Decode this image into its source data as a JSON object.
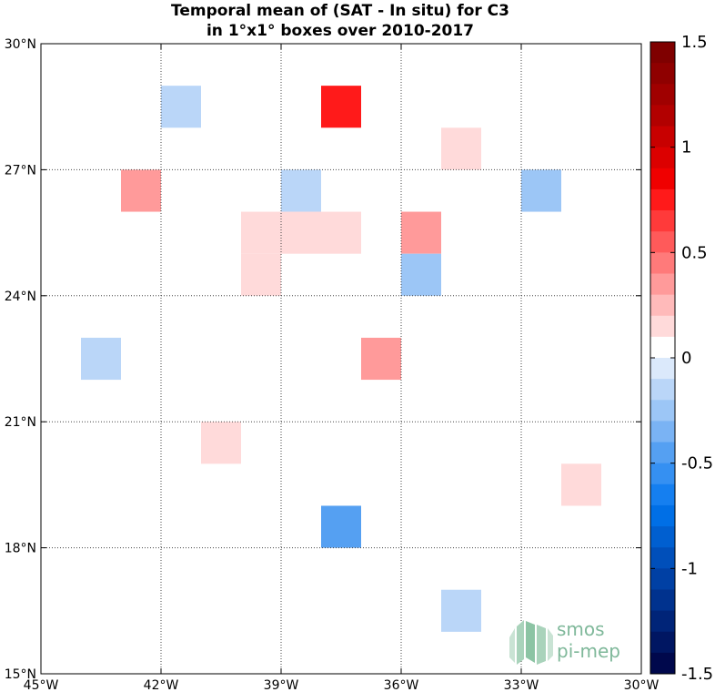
{
  "chart_data": {
    "type": "heatmap",
    "title_lines": [
      "Temporal mean of (SAT - In situ) for C3",
      "in 1°x1° boxes over 2010-2017"
    ],
    "xlim": [
      -45,
      -30
    ],
    "ylim": [
      15,
      30
    ],
    "x_ticks": [
      -45,
      -42,
      -39,
      -36,
      -33,
      -30
    ],
    "x_tick_labels": [
      "45°W",
      "42°W",
      "39°W",
      "36°W",
      "33°W",
      "30°W"
    ],
    "y_ticks": [
      15,
      18,
      21,
      24,
      27,
      30
    ],
    "y_tick_labels": [
      "15°N",
      "18°N",
      "21°N",
      "24°N",
      "27°N",
      "30°N"
    ],
    "grid": true,
    "colorbar": {
      "range": [
        -1.5,
        1.5
      ],
      "ticks": [
        -1.5,
        -1,
        -0.5,
        0,
        0.5,
        1,
        1.5
      ],
      "tick_labels": [
        "-1.5",
        "-1",
        "-0.5",
        "0",
        "0.5",
        "1",
        "1.5"
      ],
      "colors_top_to_bottom": [
        "#7f0000",
        "#8f0000",
        "#a00000",
        "#b20000",
        "#c80000",
        "#dc0000",
        "#f00000",
        "#ff1a1a",
        "#ff3a3a",
        "#ff5a5a",
        "#ff7a7a",
        "#ff9a9a",
        "#ffbaba",
        "#ffdada",
        "#ffffff",
        "#dbe9fb",
        "#bad6f8",
        "#9cc6f6",
        "#7ab3f4",
        "#55a0f2",
        "#3590f2",
        "#157ff0",
        "#006fe6",
        "#005fd0",
        "#004fba",
        "#0040a4",
        "#00328e",
        "#002478",
        "#001662",
        "#00084c"
      ]
    },
    "cells": [
      {
        "lon": -42,
        "lat": 28,
        "value": -0.15
      },
      {
        "lon": -38,
        "lat": 28,
        "value": 0.75
      },
      {
        "lon": -35,
        "lat": 27,
        "value": 0.15
      },
      {
        "lon": -43,
        "lat": 26,
        "value": 0.35
      },
      {
        "lon": -39,
        "lat": 26,
        "value": -0.15
      },
      {
        "lon": -33,
        "lat": 26,
        "value": -0.25
      },
      {
        "lon": -40,
        "lat": 25,
        "value": 0.15
      },
      {
        "lon": -39,
        "lat": 25,
        "value": 0.15
      },
      {
        "lon": -38,
        "lat": 25,
        "value": 0.15
      },
      {
        "lon": -36,
        "lat": 25,
        "value": 0.35
      },
      {
        "lon": -40,
        "lat": 24,
        "value": 0.15
      },
      {
        "lon": -36,
        "lat": 24,
        "value": -0.25
      },
      {
        "lon": -44,
        "lat": 22,
        "value": -0.15
      },
      {
        "lon": -37,
        "lat": 22,
        "value": 0.35
      },
      {
        "lon": -41,
        "lat": 20,
        "value": 0.15
      },
      {
        "lon": -32,
        "lat": 19,
        "value": 0.15
      },
      {
        "lon": -38,
        "lat": 18,
        "value": -0.45
      },
      {
        "lon": -35,
        "lat": 16,
        "value": -0.15
      }
    ]
  },
  "logo": {
    "line1": "smos",
    "line2": "pi-mep"
  }
}
